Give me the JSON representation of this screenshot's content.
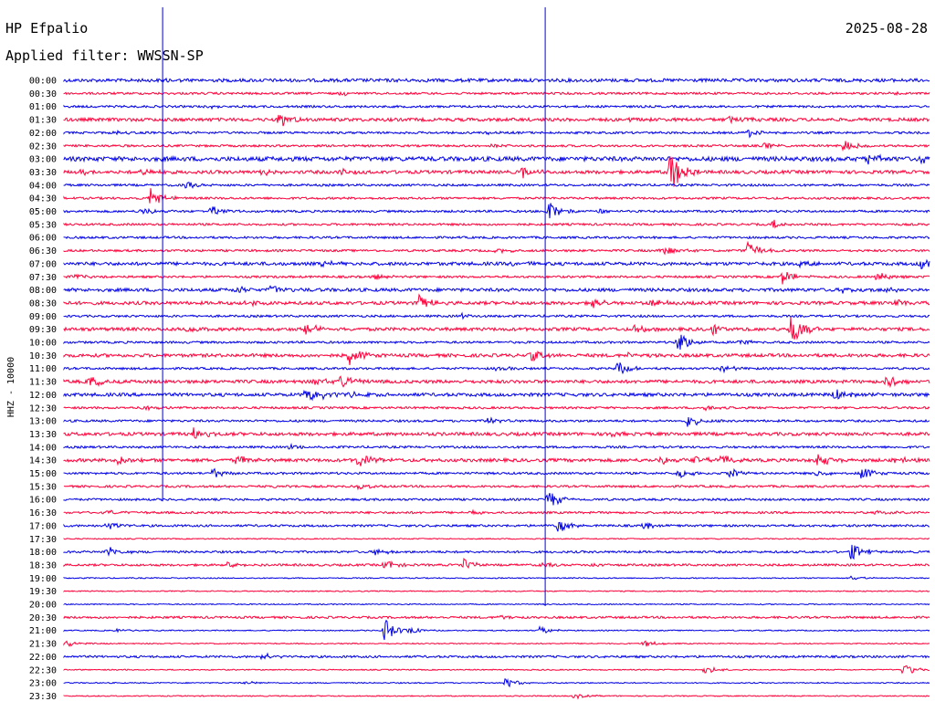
{
  "header": {
    "station": "HP Efpalio",
    "date": "2025-08-28",
    "filter": "Applied filter: WWSSN-SP",
    "channel_label": "HHZ - 10000"
  },
  "colors": {
    "blue": "#0000e6",
    "red": "#ff003a",
    "text": "#000000",
    "background": "#ffffff"
  },
  "chart_data": {
    "type": "line",
    "title": "HP Efpalio",
    "subtitle": "Applied filter: WWSSN-SP",
    "ylabel": "HHZ - 10000",
    "x_unit": "fraction of 30-minute trace",
    "grid": false,
    "line_colors": [
      "#0000e6",
      "#ff003a"
    ],
    "row_labels": [
      "00:00",
      "00:30",
      "01:00",
      "01:30",
      "02:00",
      "02:30",
      "03:00",
      "03:30",
      "04:00",
      "04:30",
      "05:00",
      "05:30",
      "06:00",
      "06:30",
      "07:00",
      "07:30",
      "08:00",
      "08:30",
      "09:00",
      "09:30",
      "10:00",
      "10:30",
      "11:00",
      "11:30",
      "12:00",
      "12:30",
      "13:00",
      "13:30",
      "14:00",
      "14:30",
      "15:00",
      "15:30",
      "16:00",
      "16:30",
      "17:00",
      "17:30",
      "18:00",
      "18:30",
      "19:00",
      "19:30",
      "20:00",
      "20:30",
      "21:00",
      "21:30",
      "22:00",
      "22:30",
      "23:00",
      "23:30"
    ],
    "noise": [
      3,
      2,
      2,
      3,
      2,
      2,
      4,
      3,
      2,
      2,
      2,
      2,
      2,
      2,
      3,
      2,
      3,
      3,
      2,
      3,
      2,
      3,
      2,
      3,
      3,
      2,
      2,
      3,
      2,
      3,
      2,
      2,
      2,
      2,
      2,
      1,
      2,
      2,
      1,
      1,
      1,
      2,
      1,
      1,
      2,
      1,
      1,
      1
    ],
    "events": [
      {
        "row": 0,
        "t": 0.12,
        "a": 1
      },
      {
        "row": 1,
        "t": 0.32,
        "a": 2
      },
      {
        "row": 1,
        "t": 0.95,
        "a": 2
      },
      {
        "row": 2,
        "t": 0.17,
        "a": 2
      },
      {
        "row": 3,
        "t": 0.25,
        "a": 10
      },
      {
        "row": 3,
        "t": 0.65,
        "a": 3
      },
      {
        "row": 3,
        "t": 0.77,
        "a": 5
      },
      {
        "row": 4,
        "t": 0.06,
        "a": 2
      },
      {
        "row": 4,
        "t": 0.49,
        "a": 2
      },
      {
        "row": 4,
        "t": 0.79,
        "a": 6
      },
      {
        "row": 5,
        "t": 0.49,
        "a": 2
      },
      {
        "row": 5,
        "t": 0.81,
        "a": 3
      },
      {
        "row": 5,
        "t": 0.9,
        "a": 7
      },
      {
        "row": 6,
        "t": 0.93,
        "a": 6
      },
      {
        "row": 6,
        "t": 0.99,
        "a": 6
      },
      {
        "row": 7,
        "t": 0.02,
        "a": 4
      },
      {
        "row": 7,
        "t": 0.09,
        "a": 4
      },
      {
        "row": 7,
        "t": 0.23,
        "a": 5
      },
      {
        "row": 7,
        "t": 0.32,
        "a": 4
      },
      {
        "row": 7,
        "t": 0.53,
        "a": 6
      },
      {
        "row": 7,
        "t": 0.7,
        "a": 25
      },
      {
        "row": 8,
        "t": 0.14,
        "a": 4
      },
      {
        "row": 9,
        "t": 0.1,
        "a": 12
      },
      {
        "row": 10,
        "t": 0.09,
        "a": 4
      },
      {
        "row": 10,
        "t": 0.17,
        "a": 6
      },
      {
        "row": 10,
        "t": 0.56,
        "a": 12
      },
      {
        "row": 10,
        "t": 0.62,
        "a": 3
      },
      {
        "row": 11,
        "t": 0.82,
        "a": 5
      },
      {
        "row": 13,
        "t": 0.5,
        "a": 4
      },
      {
        "row": 13,
        "t": 0.69,
        "a": 7
      },
      {
        "row": 13,
        "t": 0.79,
        "a": 10
      },
      {
        "row": 14,
        "t": 0.3,
        "a": 4
      },
      {
        "row": 14,
        "t": 0.52,
        "a": 3
      },
      {
        "row": 14,
        "t": 0.85,
        "a": 4
      },
      {
        "row": 14,
        "t": 0.99,
        "a": 8
      },
      {
        "row": 15,
        "t": 0.01,
        "a": 3
      },
      {
        "row": 15,
        "t": 0.36,
        "a": 3
      },
      {
        "row": 15,
        "t": 0.83,
        "a": 8
      },
      {
        "row": 15,
        "t": 0.94,
        "a": 6
      },
      {
        "row": 16,
        "t": 0.2,
        "a": 4
      },
      {
        "row": 16,
        "t": 0.24,
        "a": 5
      },
      {
        "row": 16,
        "t": 0.9,
        "a": 4
      },
      {
        "row": 16,
        "t": 0.95,
        "a": 5
      },
      {
        "row": 17,
        "t": 0.21,
        "a": 4
      },
      {
        "row": 17,
        "t": 0.41,
        "a": 10
      },
      {
        "row": 17,
        "t": 0.61,
        "a": 6
      },
      {
        "row": 17,
        "t": 0.68,
        "a": 4
      },
      {
        "row": 17,
        "t": 0.96,
        "a": 5
      },
      {
        "row": 18,
        "t": 0.46,
        "a": 3
      },
      {
        "row": 19,
        "t": 0.14,
        "a": 6
      },
      {
        "row": 19,
        "t": 0.28,
        "a": 8
      },
      {
        "row": 19,
        "t": 0.66,
        "a": 5
      },
      {
        "row": 19,
        "t": 0.75,
        "a": 6
      },
      {
        "row": 19,
        "t": 0.84,
        "a": 20
      },
      {
        "row": 20,
        "t": 0.71,
        "a": 12
      },
      {
        "row": 20,
        "t": 0.78,
        "a": 4
      },
      {
        "row": 21,
        "t": 0.33,
        "a": 10
      },
      {
        "row": 21,
        "t": 0.54,
        "a": 6
      },
      {
        "row": 21,
        "t": 0.65,
        "a": 3
      },
      {
        "row": 22,
        "t": 0.5,
        "a": 3
      },
      {
        "row": 22,
        "t": 0.64,
        "a": 8
      },
      {
        "row": 22,
        "t": 0.76,
        "a": 4
      },
      {
        "row": 23,
        "t": 0.03,
        "a": 6
      },
      {
        "row": 23,
        "t": 0.29,
        "a": 4
      },
      {
        "row": 23,
        "t": 0.32,
        "a": 8
      },
      {
        "row": 23,
        "t": 0.95,
        "a": 8
      },
      {
        "row": 24,
        "t": 0.28,
        "a": 8
      },
      {
        "row": 24,
        "t": 0.3,
        "a": 6
      },
      {
        "row": 24,
        "t": 0.33,
        "a": 4
      },
      {
        "row": 24,
        "t": 0.89,
        "a": 6
      },
      {
        "row": 25,
        "t": 0.09,
        "a": 4
      },
      {
        "row": 25,
        "t": 0.74,
        "a": 3
      },
      {
        "row": 26,
        "t": 0.49,
        "a": 5
      },
      {
        "row": 26,
        "t": 0.72,
        "a": 8
      },
      {
        "row": 27,
        "t": 0.15,
        "a": 7
      },
      {
        "row": 27,
        "t": 0.63,
        "a": 3
      },
      {
        "row": 28,
        "t": 0.26,
        "a": 3
      },
      {
        "row": 29,
        "t": 0.06,
        "a": 7
      },
      {
        "row": 29,
        "t": 0.2,
        "a": 6
      },
      {
        "row": 29,
        "t": 0.34,
        "a": 8
      },
      {
        "row": 29,
        "t": 0.69,
        "a": 4
      },
      {
        "row": 29,
        "t": 0.73,
        "a": 5
      },
      {
        "row": 29,
        "t": 0.76,
        "a": 6
      },
      {
        "row": 29,
        "t": 0.87,
        "a": 8
      },
      {
        "row": 29,
        "t": 0.96,
        "a": 4
      },
      {
        "row": 30,
        "t": 0.17,
        "a": 6
      },
      {
        "row": 30,
        "t": 0.71,
        "a": 5
      },
      {
        "row": 30,
        "t": 0.77,
        "a": 6
      },
      {
        "row": 30,
        "t": 0.87,
        "a": 4
      },
      {
        "row": 30,
        "t": 0.92,
        "a": 8
      },
      {
        "row": 31,
        "t": 0.24,
        "a": 2
      },
      {
        "row": 31,
        "t": 0.34,
        "a": 4
      },
      {
        "row": 32,
        "t": 0.56,
        "a": 10
      },
      {
        "row": 33,
        "t": 0.05,
        "a": 3
      },
      {
        "row": 33,
        "t": 0.47,
        "a": 2
      },
      {
        "row": 33,
        "t": 0.94,
        "a": 3
      },
      {
        "row": 34,
        "t": 0.05,
        "a": 5
      },
      {
        "row": 34,
        "t": 0.57,
        "a": 8
      },
      {
        "row": 34,
        "t": 0.67,
        "a": 4
      },
      {
        "row": 36,
        "t": 0.05,
        "a": 6
      },
      {
        "row": 36,
        "t": 0.36,
        "a": 4
      },
      {
        "row": 36,
        "t": 0.91,
        "a": 10
      },
      {
        "row": 37,
        "t": 0.19,
        "a": 4
      },
      {
        "row": 37,
        "t": 0.37,
        "a": 6
      },
      {
        "row": 37,
        "t": 0.46,
        "a": 8
      },
      {
        "row": 37,
        "t": 0.55,
        "a": 3
      },
      {
        "row": 37,
        "t": 0.61,
        "a": 3
      },
      {
        "row": 38,
        "t": 0.91,
        "a": 3
      },
      {
        "row": 41,
        "t": 0.5,
        "a": 3
      },
      {
        "row": 42,
        "t": 0.06,
        "a": 2
      },
      {
        "row": 42,
        "t": 0.37,
        "a": 14
      },
      {
        "row": 42,
        "t": 0.4,
        "a": 4
      },
      {
        "row": 42,
        "t": 0.55,
        "a": 5
      },
      {
        "row": 43,
        "t": 0.0,
        "a": 5
      },
      {
        "row": 43,
        "t": 0.67,
        "a": 4
      },
      {
        "row": 44,
        "t": 0.23,
        "a": 4
      },
      {
        "row": 45,
        "t": 0.74,
        "a": 5
      },
      {
        "row": 45,
        "t": 0.97,
        "a": 8
      },
      {
        "row": 46,
        "t": 0.21,
        "a": 2
      },
      {
        "row": 46,
        "t": 0.51,
        "a": 6
      },
      {
        "row": 47,
        "t": 0.59,
        "a": 3
      }
    ],
    "spikes": [
      {
        "x": 0.114,
        "rows": [
          0,
          32
        ],
        "color": "blue"
      },
      {
        "x": 0.556,
        "rows": [
          0,
          40
        ],
        "color": "blue"
      }
    ]
  }
}
